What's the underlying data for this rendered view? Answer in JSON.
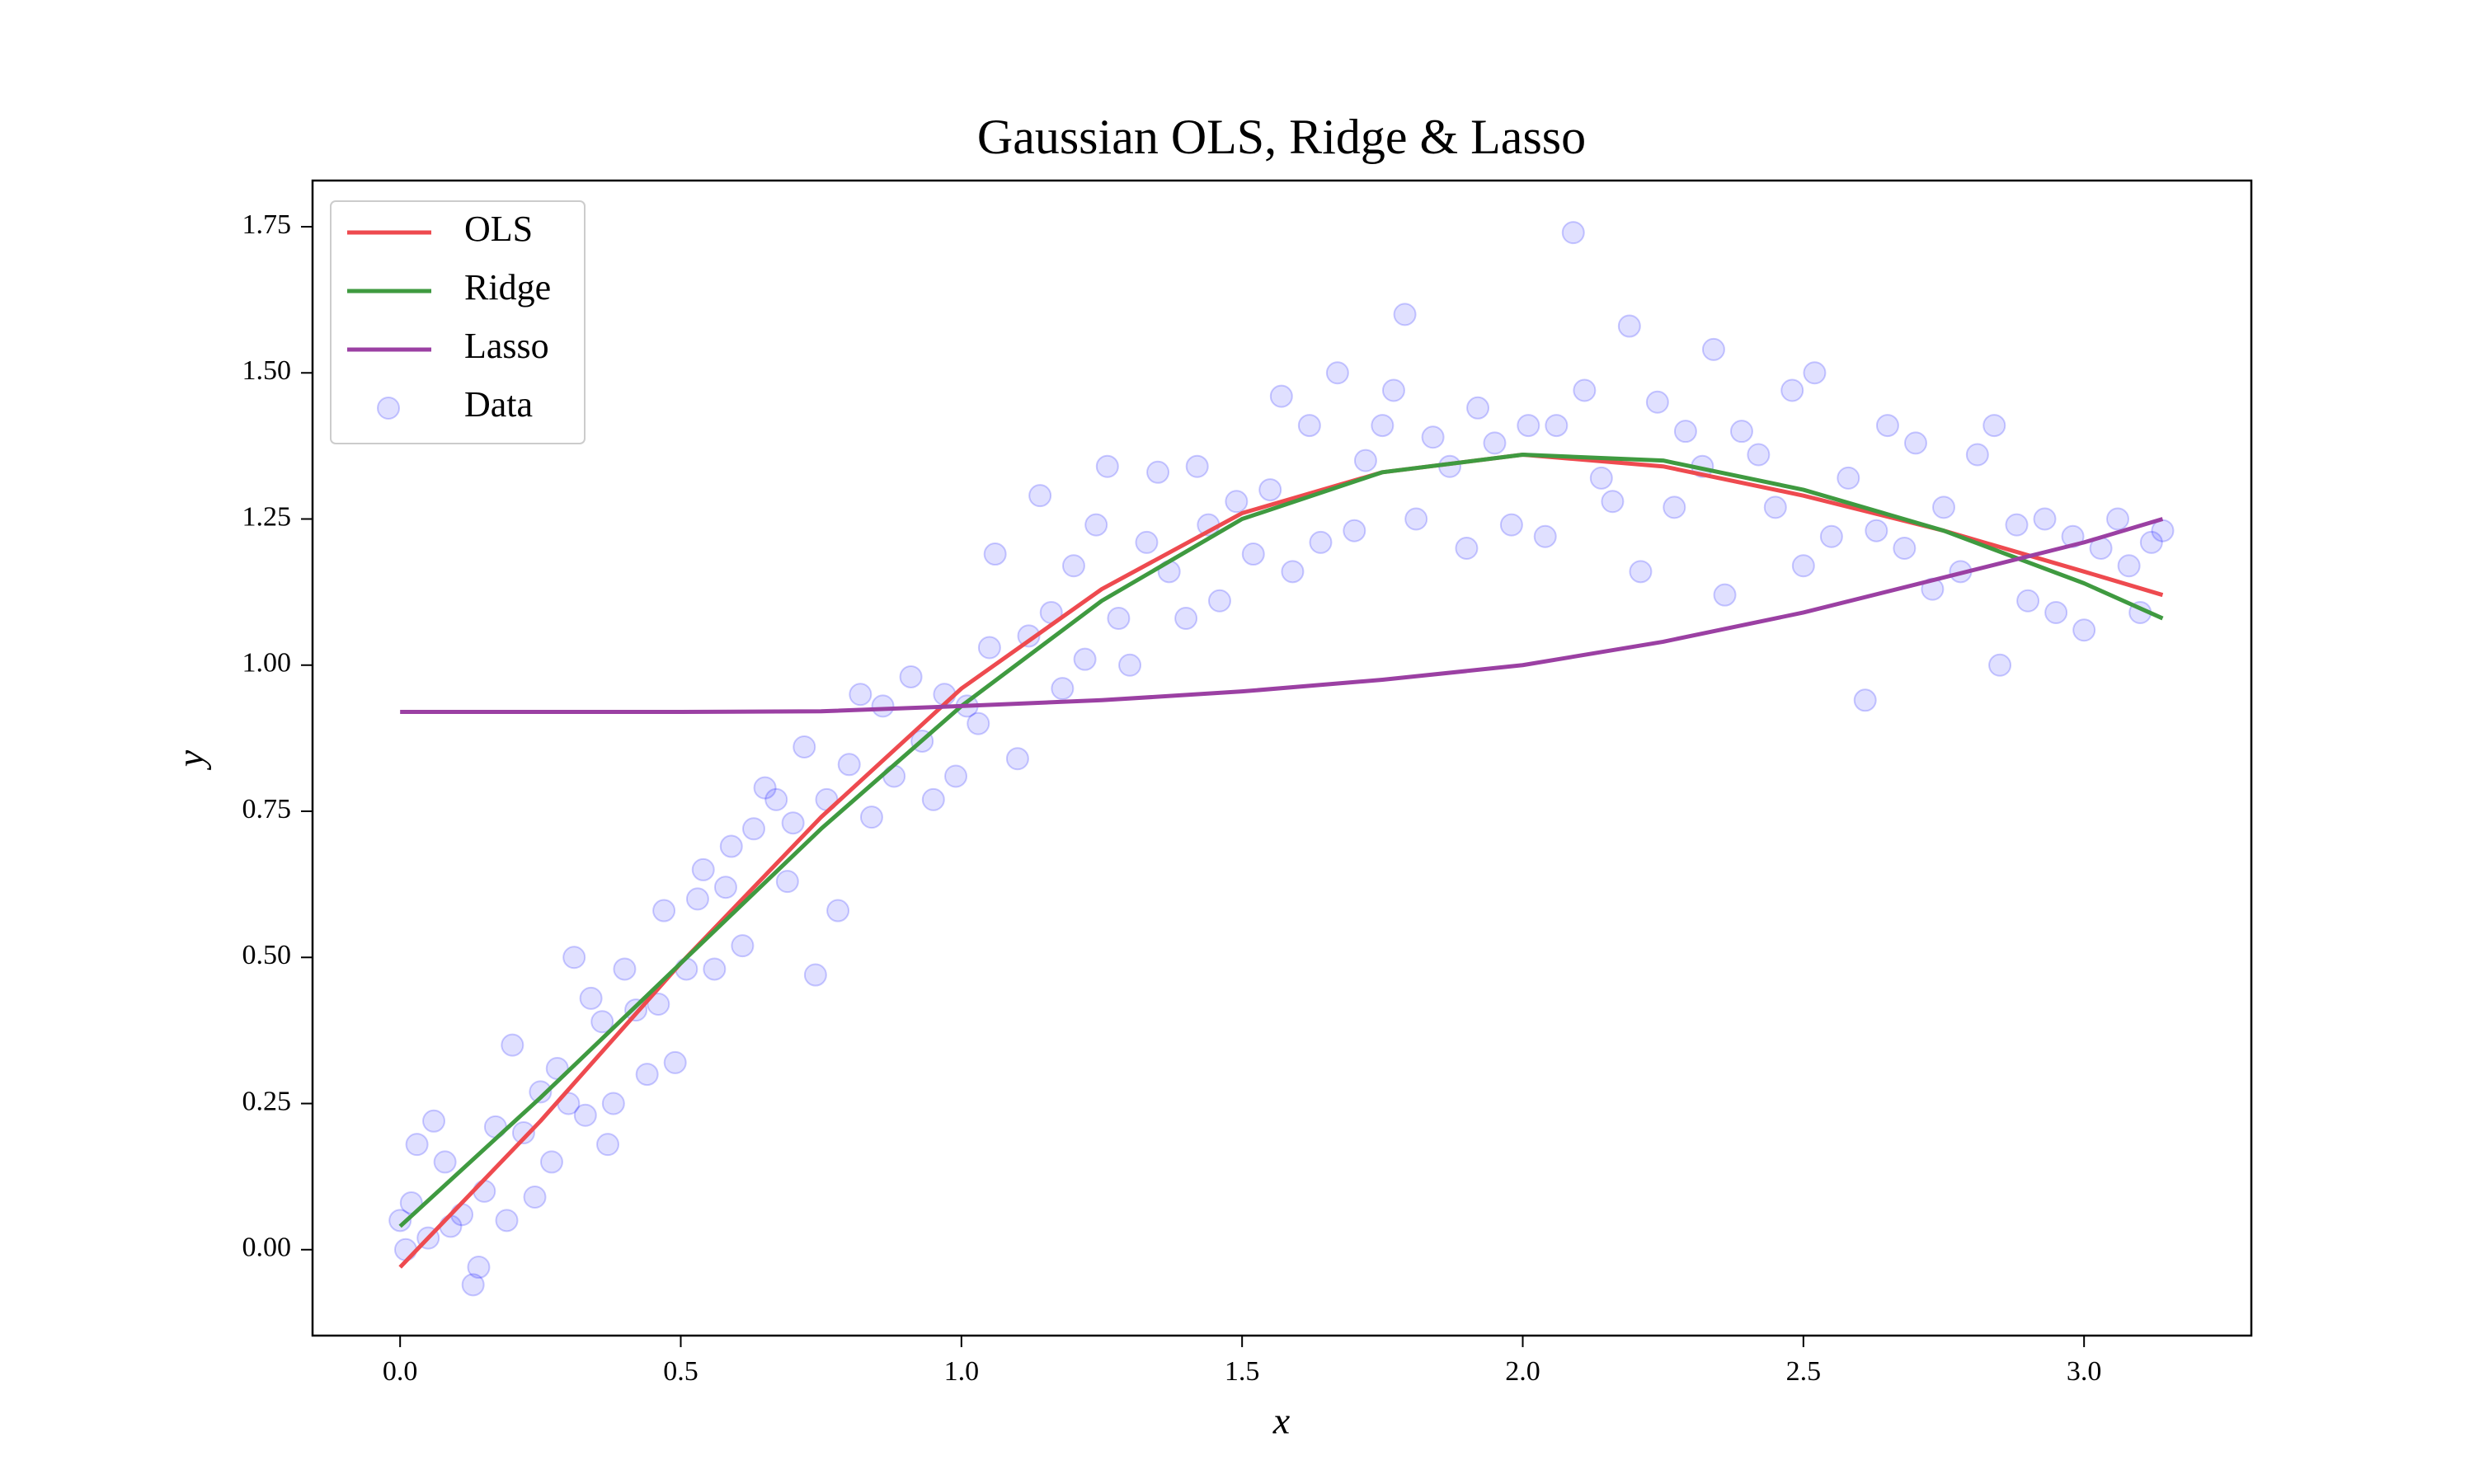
{
  "chart_data": {
    "type": "line",
    "title": "Gaussian OLS, Ridge & Lasso",
    "x_label": "x",
    "y_label": "y",
    "x": [
      0,
      0.25,
      0.5,
      0.75,
      1.0,
      1.25,
      1.5,
      1.75,
      2.0,
      2.25,
      2.5,
      2.75,
      3.0,
      3.14
    ],
    "series": [
      {
        "name": "OLS",
        "type": "line",
        "color": "#ee4a4f",
        "values": [
          -0.03,
          0.22,
          0.49,
          0.74,
          0.96,
          1.13,
          1.26,
          1.33,
          1.36,
          1.34,
          1.29,
          1.23,
          1.16,
          1.12
        ]
      },
      {
        "name": "Ridge",
        "type": "line",
        "color": "#3f9a40",
        "values": [
          0.04,
          0.26,
          0.49,
          0.72,
          0.93,
          1.11,
          1.25,
          1.33,
          1.36,
          1.35,
          1.3,
          1.23,
          1.14,
          1.08
        ]
      },
      {
        "name": "Lasso",
        "type": "line",
        "color": "#9b40a3",
        "values": [
          0.92,
          0.92,
          0.92,
          0.921,
          0.93,
          0.94,
          0.955,
          0.975,
          1.0,
          1.04,
          1.09,
          1.15,
          1.21,
          1.25
        ]
      },
      {
        "name": "Data",
        "type": "scatter",
        "color": "#0000ff",
        "x": [
          0.0,
          0.01,
          0.02,
          0.03,
          0.05,
          0.06,
          0.08,
          0.09,
          0.11,
          0.13,
          0.14,
          0.15,
          0.17,
          0.19,
          0.2,
          0.22,
          0.24,
          0.25,
          0.27,
          0.28,
          0.3,
          0.31,
          0.33,
          0.34,
          0.36,
          0.37,
          0.38,
          0.4,
          0.42,
          0.44,
          0.46,
          0.47,
          0.49,
          0.51,
          0.53,
          0.54,
          0.56,
          0.58,
          0.59,
          0.61,
          0.63,
          0.65,
          0.67,
          0.69,
          0.7,
          0.72,
          0.74,
          0.76,
          0.78,
          0.8,
          0.82,
          0.84,
          0.86,
          0.88,
          0.91,
          0.93,
          0.95,
          0.97,
          0.99,
          1.01,
          1.03,
          1.05,
          1.06,
          1.1,
          1.12,
          1.14,
          1.16,
          1.18,
          1.2,
          1.22,
          1.24,
          1.26,
          1.28,
          1.3,
          1.33,
          1.35,
          1.37,
          1.4,
          1.42,
          1.44,
          1.46,
          1.49,
          1.52,
          1.55,
          1.57,
          1.59,
          1.62,
          1.64,
          1.67,
          1.7,
          1.72,
          1.75,
          1.77,
          1.79,
          1.81,
          1.84,
          1.87,
          1.9,
          1.92,
          1.95,
          1.98,
          2.01,
          2.04,
          2.06,
          2.09,
          2.11,
          2.14,
          2.16,
          2.19,
          2.21,
          2.24,
          2.27,
          2.29,
          2.32,
          2.34,
          2.36,
          2.39,
          2.42,
          2.45,
          2.48,
          2.5,
          2.52,
          2.55,
          2.58,
          2.61,
          2.63,
          2.65,
          2.68,
          2.7,
          2.73,
          2.75,
          2.78,
          2.81,
          2.84,
          2.85,
          2.88,
          2.9,
          2.93,
          2.95,
          2.98,
          3.0,
          3.03,
          3.06,
          3.08,
          3.1,
          3.12,
          3.14
        ],
        "values": [
          0.05,
          0.0,
          0.08,
          0.18,
          0.02,
          0.22,
          0.15,
          0.04,
          0.06,
          -0.06,
          -0.03,
          0.1,
          0.21,
          0.05,
          0.35,
          0.2,
          0.09,
          0.27,
          0.15,
          0.31,
          0.25,
          0.5,
          0.23,
          0.43,
          0.39,
          0.18,
          0.25,
          0.48,
          0.41,
          0.3,
          0.42,
          0.58,
          0.32,
          0.48,
          0.6,
          0.65,
          0.48,
          0.62,
          0.69,
          0.52,
          0.72,
          0.79,
          0.77,
          0.63,
          0.73,
          0.86,
          0.47,
          0.77,
          0.58,
          0.83,
          0.95,
          0.74,
          0.93,
          0.81,
          0.98,
          0.87,
          0.77,
          0.95,
          0.81,
          0.93,
          0.9,
          1.03,
          1.19,
          0.84,
          1.05,
          1.29,
          1.09,
          0.96,
          1.17,
          1.01,
          1.24,
          1.34,
          1.08,
          1.0,
          1.21,
          1.33,
          1.16,
          1.08,
          1.34,
          1.24,
          1.11,
          1.28,
          1.19,
          1.3,
          1.46,
          1.16,
          1.41,
          1.21,
          1.5,
          1.23,
          1.35,
          1.41,
          1.47,
          1.6,
          1.25,
          1.39,
          1.34,
          1.2,
          1.44,
          1.38,
          1.24,
          1.41,
          1.22,
          1.41,
          1.74,
          1.47,
          1.32,
          1.28,
          1.58,
          1.16,
          1.45,
          1.27,
          1.4,
          1.34,
          1.54,
          1.12,
          1.4,
          1.36,
          1.27,
          1.47,
          1.17,
          1.5,
          1.22,
          1.32,
          0.94,
          1.23,
          1.41,
          1.2,
          1.38,
          1.13,
          1.27,
          1.16,
          1.36,
          1.41,
          1.0,
          1.24,
          1.11,
          1.25,
          1.09,
          1.22,
          1.06,
          1.2,
          1.25,
          1.17,
          1.09,
          1.21,
          1.23
        ]
      }
    ],
    "xlim": [
      -0.156,
      3.298
    ],
    "ylim": [
      -0.147,
      1.829
    ],
    "xticks": [
      {
        "value": 0,
        "label": "0.0"
      },
      0.5,
      {
        "value": 1,
        "label": "1.0"
      },
      1.5,
      {
        "value": 2,
        "label": "2.0"
      },
      2.5,
      {
        "value": 3,
        "label": "3.0"
      }
    ],
    "yticks": [
      {
        "value": 0,
        "label": "0.00"
      },
      0.25,
      {
        "value": 0.5,
        "label": "0.50"
      },
      0.75,
      {
        "value": 1,
        "label": "1.00"
      },
      1.25,
      {
        "value": 1.5,
        "label": "1.50"
      },
      1.75
    ],
    "grid": false,
    "legend": "upper left"
  }
}
